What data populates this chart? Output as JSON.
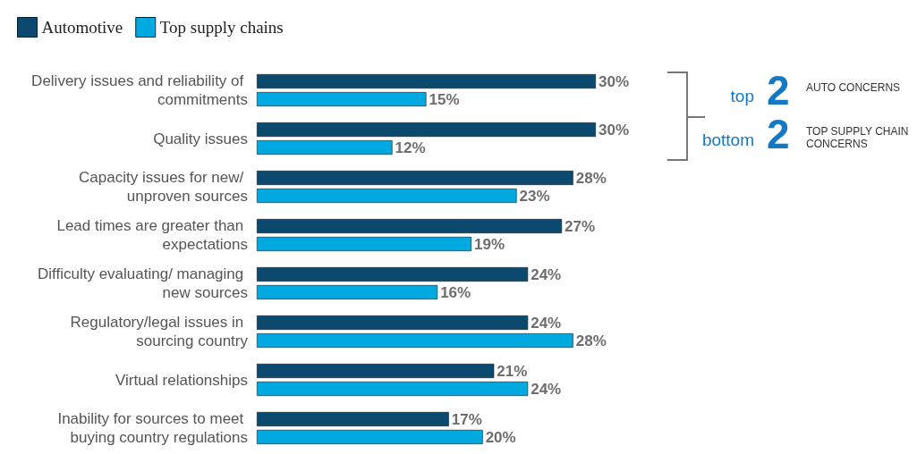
{
  "chart_data": {
    "type": "bar",
    "orientation": "horizontal",
    "categories": [
      "Delivery issues and reliability of commitments",
      "Quality issues",
      "Capacity issues for new/ unproven sources",
      "Lead times are greater than expectations",
      "Difficulty evaluating/ managing new sources",
      "Regulatory/legal issues in sourcing country",
      "Virtual relationships",
      "Inability for sources to meet buying country regulations"
    ],
    "series": [
      {
        "name": "Automotive",
        "color": "#0b4a6e",
        "values": [
          30,
          30,
          28,
          27,
          24,
          24,
          21,
          17
        ],
        "value_labels": [
          "30%",
          "30%",
          "28%",
          "27%",
          "24%",
          "24%",
          "21%",
          "17%"
        ]
      },
      {
        "name": "Top supply chains",
        "color": "#00a9e0",
        "values": [
          15,
          12,
          23,
          19,
          16,
          28,
          24,
          20
        ],
        "value_labels": [
          "15%",
          "12%",
          "23%",
          "19%",
          "16%",
          "28%",
          "24%",
          "20%"
        ]
      }
    ],
    "annotations": [
      "top 2 AUTO CONCERNS",
      "bottom 2 TOP SUPPLY CHAIN CONCERNS"
    ],
    "legend": "top left",
    "grid": false,
    "tick_labels": "y"
  }
}
